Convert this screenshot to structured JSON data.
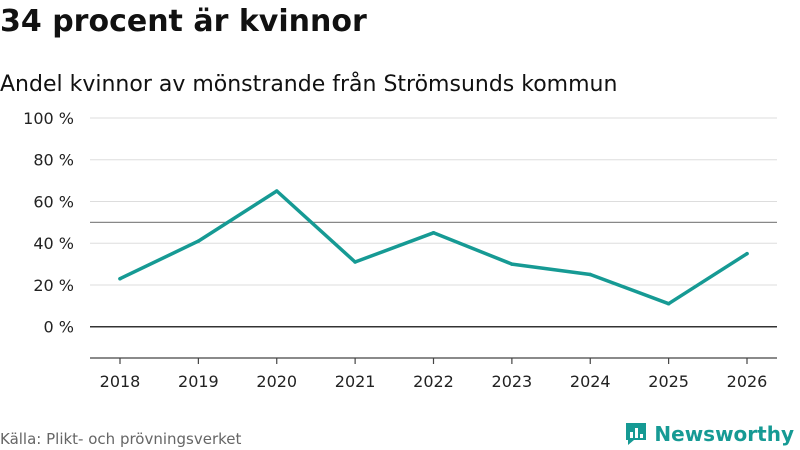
{
  "title": "34 procent är kvinnor",
  "subtitle": "Andel kvinnor av mönstrande från Strömsunds kommun",
  "source": "Källa: Plikt- och prövningsverket",
  "brand": "Newsworthy",
  "colors": {
    "line": "#169a94",
    "grid": "#dddddd",
    "reference": "#888888",
    "zero": "#333333",
    "axis": "#444444",
    "brand": "#169a94"
  },
  "chart_data": {
    "type": "line",
    "title": "Andel kvinnor av mönstrande från Strömsunds kommun",
    "xlabel": "",
    "ylabel": "",
    "categories": [
      "2018",
      "2019",
      "2020",
      "2021",
      "2022",
      "2023",
      "2024",
      "2025",
      "2026"
    ],
    "series": [
      {
        "name": "Andel kvinnor",
        "values": [
          23,
          41,
          65,
          31,
          45,
          30,
          25,
          11,
          35
        ]
      }
    ],
    "ylim": [
      -15,
      100
    ],
    "yticks": [
      0,
      20,
      40,
      60,
      80,
      100
    ],
    "ytick_labels": [
      "0 %",
      "20 %",
      "40 %",
      "60 %",
      "80 %",
      "100 %"
    ],
    "reference_line": 50,
    "grid": true
  }
}
